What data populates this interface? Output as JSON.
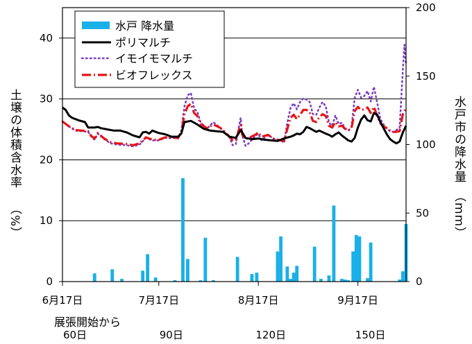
{
  "chart_data": {
    "type": "bar+line",
    "left_axis": {
      "label": "土壌の体積含水率",
      "unit": "%",
      "ylim": [
        0,
        45
      ],
      "ticks": [
        0,
        10,
        20,
        30,
        40
      ]
    },
    "right_axis": {
      "label": "水戸市の降水量",
      "unit": "mm",
      "ylim": [
        0,
        200
      ],
      "ticks": [
        0,
        50,
        100,
        150,
        200
      ]
    },
    "x_axis": {
      "start": "6月17日",
      "end_day": 107,
      "ticks": [
        {
          "day": 0,
          "label": "6月17日"
        },
        {
          "day": 30,
          "label": "7月17日"
        },
        {
          "day": 61,
          "label": "8月17日"
        },
        {
          "day": 92,
          "label": "9月17日"
        }
      ],
      "secondary_label": "展張開始から",
      "secondary_ticks": [
        {
          "day": 0,
          "label": "60日"
        },
        {
          "day": 30,
          "label": "90日"
        },
        {
          "day": 61,
          "label": "120日"
        },
        {
          "day": 92,
          "label": "150日"
        }
      ]
    },
    "grid": "horizontal",
    "legend_position": "top-left",
    "series": [
      {
        "name": "水戸 降水量",
        "kind": "bar",
        "axis": "right",
        "color": "#1ab0e8",
        "points": [
          [
            10,
            6
          ],
          [
            15.5,
            9
          ],
          [
            18.5,
            2
          ],
          [
            25,
            8
          ],
          [
            26.5,
            20
          ],
          [
            29,
            3
          ],
          [
            35,
            1
          ],
          [
            37.5,
            75.5
          ],
          [
            39,
            16.5
          ],
          [
            43,
            1
          ],
          [
            44.5,
            32
          ],
          [
            47,
            1
          ],
          [
            54.5,
            18
          ],
          [
            59,
            5.5
          ],
          [
            60.5,
            6.5
          ],
          [
            67,
            22
          ],
          [
            68,
            33
          ],
          [
            70,
            11
          ],
          [
            71,
            2
          ],
          [
            72,
            6.5
          ],
          [
            73,
            11.5
          ],
          [
            78.5,
            25.5
          ],
          [
            80.5,
            2
          ],
          [
            83,
            4.5
          ],
          [
            84.5,
            55.5
          ],
          [
            87,
            2
          ],
          [
            88,
            1.5
          ],
          [
            89,
            1
          ],
          [
            90.5,
            22
          ],
          [
            91.5,
            34
          ],
          [
            92.5,
            33
          ],
          [
            95,
            2.5
          ],
          [
            96,
            28.5
          ],
          [
            105,
            1.5
          ],
          [
            106,
            7.5
          ],
          [
            107,
            42
          ]
        ]
      },
      {
        "name": "ポリマルチ",
        "kind": "line",
        "axis": "left",
        "color": "#000000",
        "points": [
          [
            0,
            28.6
          ],
          [
            1,
            28.2
          ],
          [
            2,
            27.3
          ],
          [
            3,
            26.9
          ],
          [
            5,
            26.5
          ],
          [
            7,
            26.2
          ],
          [
            8,
            25.3
          ],
          [
            10,
            25.3
          ],
          [
            11,
            25.4
          ],
          [
            12,
            25.2
          ],
          [
            14,
            25
          ],
          [
            16,
            24.8
          ],
          [
            18,
            24.8
          ],
          [
            20,
            24.5
          ],
          [
            22,
            24
          ],
          [
            24,
            23.7
          ],
          [
            25,
            24.5
          ],
          [
            26,
            24.6
          ],
          [
            27,
            24.3
          ],
          [
            28,
            24.8
          ],
          [
            30,
            24.4
          ],
          [
            32,
            24.2
          ],
          [
            34,
            23.8
          ],
          [
            36,
            23.8
          ],
          [
            37,
            24.3
          ],
          [
            38,
            26.2
          ],
          [
            40,
            26.4
          ],
          [
            42,
            25.8
          ],
          [
            44,
            25.1
          ],
          [
            46,
            24.8
          ],
          [
            48,
            24.7
          ],
          [
            50,
            24.6
          ],
          [
            52,
            23.8
          ],
          [
            54,
            23.6
          ],
          [
            55.5,
            24.9
          ],
          [
            57,
            23.6
          ],
          [
            59,
            23.4
          ],
          [
            61,
            23.5
          ],
          [
            63,
            23.3
          ],
          [
            65,
            23.2
          ],
          [
            67,
            23.1
          ],
          [
            69,
            23.5
          ],
          [
            71,
            23.8
          ],
          [
            72,
            24
          ],
          [
            73,
            24.3
          ],
          [
            74,
            24.2
          ],
          [
            75,
            24.6
          ],
          [
            76,
            25.4
          ],
          [
            77,
            25.2
          ],
          [
            79,
            24.6
          ],
          [
            80,
            24.8
          ],
          [
            82,
            24.3
          ],
          [
            83,
            24.1
          ],
          [
            84,
            23.8
          ],
          [
            85,
            24.2
          ],
          [
            86,
            24.5
          ],
          [
            87,
            24
          ],
          [
            88,
            23.6
          ],
          [
            89,
            23.2
          ],
          [
            90,
            23
          ],
          [
            91,
            23.6
          ],
          [
            92,
            25.3
          ],
          [
            93,
            26.6
          ],
          [
            94,
            27.3
          ],
          [
            95,
            26.5
          ],
          [
            96,
            26.3
          ],
          [
            97,
            27.7
          ],
          [
            98,
            27.4
          ],
          [
            99,
            26.2
          ],
          [
            100,
            25.2
          ],
          [
            101,
            24.2
          ],
          [
            102,
            23.4
          ],
          [
            103,
            23
          ],
          [
            104,
            22.7
          ],
          [
            105,
            23
          ],
          [
            106,
            24.5
          ],
          [
            107,
            25.6
          ]
        ]
      },
      {
        "name": "イモイモマルチ",
        "kind": "line",
        "axis": "left",
        "color": "#7a3cc8",
        "points": [
          [
            0,
            26.3
          ],
          [
            2,
            25.5
          ],
          [
            4,
            24.8
          ],
          [
            6,
            24.7
          ],
          [
            8,
            24.6
          ],
          [
            9,
            23.8
          ],
          [
            10,
            23.3
          ],
          [
            11,
            24.3
          ],
          [
            13,
            23.4
          ],
          [
            15,
            22.7
          ],
          [
            17,
            22.5
          ],
          [
            20,
            22.4
          ],
          [
            22,
            22.2
          ],
          [
            24,
            22.5
          ],
          [
            26,
            23.6
          ],
          [
            28,
            23.2
          ],
          [
            30,
            23.2
          ],
          [
            32,
            23.6
          ],
          [
            34,
            23.6
          ],
          [
            36,
            23.5
          ],
          [
            37,
            24.8
          ],
          [
            38,
            28.8
          ],
          [
            39,
            30.6
          ],
          [
            40,
            31
          ],
          [
            41,
            28.4
          ],
          [
            42,
            27.9
          ],
          [
            43,
            26.2
          ],
          [
            45,
            25.1
          ],
          [
            47,
            26.2
          ],
          [
            49,
            25.3
          ],
          [
            51,
            24.3
          ],
          [
            52,
            23.7
          ],
          [
            53,
            22.4
          ],
          [
            54,
            22.6
          ],
          [
            55,
            25.6
          ],
          [
            55.5,
            26.9
          ],
          [
            56,
            24
          ],
          [
            57,
            22.3
          ],
          [
            58,
            22.7
          ],
          [
            60,
            23.9
          ],
          [
            61,
            24.3
          ],
          [
            62,
            23.2
          ],
          [
            64,
            24.1
          ],
          [
            66,
            23.4
          ],
          [
            68,
            23.2
          ],
          [
            69,
            22.8
          ],
          [
            70,
            26
          ],
          [
            71,
            28.5
          ],
          [
            72,
            29.3
          ],
          [
            73,
            28.3
          ],
          [
            74,
            29.5
          ],
          [
            75,
            30.1
          ],
          [
            76,
            29.9
          ],
          [
            77,
            29.5
          ],
          [
            78,
            27.5
          ],
          [
            79,
            27.4
          ],
          [
            80,
            28.6
          ],
          [
            81,
            29.5
          ],
          [
            82,
            28.8
          ],
          [
            83,
            26.1
          ],
          [
            84,
            25.6
          ],
          [
            85,
            27.3
          ],
          [
            86,
            25.9
          ],
          [
            87,
            26.1
          ],
          [
            88,
            25.2
          ],
          [
            89,
            24.8
          ],
          [
            90,
            25.4
          ],
          [
            91,
            30.2
          ],
          [
            92,
            31.5
          ],
          [
            93,
            30.2
          ],
          [
            94,
            30.5
          ],
          [
            95,
            31.3
          ],
          [
            96,
            29.6
          ],
          [
            97,
            32
          ],
          [
            98,
            29.4
          ],
          [
            99,
            26.7
          ],
          [
            100,
            25.8
          ],
          [
            101,
            25.2
          ],
          [
            102,
            24.7
          ],
          [
            103,
            24.6
          ],
          [
            104,
            24.9
          ],
          [
            105,
            25.2
          ],
          [
            106,
            34.8
          ],
          [
            106.5,
            38.9
          ],
          [
            107,
            35.5
          ]
        ]
      },
      {
        "name": "ビオフレックス",
        "kind": "line",
        "axis": "left",
        "color": "#e81414",
        "points": [
          [
            0,
            26.3
          ],
          [
            2,
            25.5
          ],
          [
            4,
            24.9
          ],
          [
            6,
            24.8
          ],
          [
            8,
            24.7
          ],
          [
            9,
            23.9
          ],
          [
            10,
            23.5
          ],
          [
            11,
            24.4
          ],
          [
            13,
            23.5
          ],
          [
            15,
            22.9
          ],
          [
            17,
            22.7
          ],
          [
            20,
            22.6
          ],
          [
            22,
            22.4
          ],
          [
            24,
            22.7
          ],
          [
            26,
            23.7
          ],
          [
            28,
            23.3
          ],
          [
            30,
            23.3
          ],
          [
            32,
            23.7
          ],
          [
            34,
            23.6
          ],
          [
            36,
            23.6
          ],
          [
            37,
            24.5
          ],
          [
            38,
            27.5
          ],
          [
            39,
            28.8
          ],
          [
            40,
            29.2
          ],
          [
            41,
            27.7
          ],
          [
            42,
            27.2
          ],
          [
            43,
            25.9
          ],
          [
            45,
            25.2
          ],
          [
            47,
            25.8
          ],
          [
            49,
            25.3
          ],
          [
            51,
            24.4
          ],
          [
            52,
            23.8
          ],
          [
            53,
            23.2
          ],
          [
            54,
            23.2
          ],
          [
            55,
            25
          ],
          [
            55.5,
            25.7
          ],
          [
            56,
            24.1
          ],
          [
            57,
            23.4
          ],
          [
            58,
            23.6
          ],
          [
            60,
            24.1
          ],
          [
            61,
            24.5
          ],
          [
            62,
            23.8
          ],
          [
            64,
            24.1
          ],
          [
            66,
            23.4
          ],
          [
            68,
            23.2
          ],
          [
            69,
            23.1
          ],
          [
            70,
            25
          ],
          [
            71,
            26.9
          ],
          [
            72,
            27.4
          ],
          [
            73,
            26.7
          ],
          [
            74,
            27.4
          ],
          [
            75,
            28.2
          ],
          [
            76,
            28.2
          ],
          [
            77,
            27.8
          ],
          [
            78,
            26.4
          ],
          [
            79,
            26.2
          ],
          [
            80,
            27
          ],
          [
            81,
            27.5
          ],
          [
            82,
            27.2
          ],
          [
            83,
            25.6
          ],
          [
            84,
            25.3
          ],
          [
            85,
            26.2
          ],
          [
            86,
            25.5
          ],
          [
            87,
            25.6
          ],
          [
            88,
            25.1
          ],
          [
            89,
            24.8
          ],
          [
            90,
            25.2
          ],
          [
            91,
            28
          ],
          [
            92,
            28.7
          ],
          [
            93,
            28.2
          ],
          [
            94,
            28.3
          ],
          [
            95,
            28.6
          ],
          [
            96,
            27.7
          ],
          [
            97,
            28.7
          ],
          [
            98,
            27.2
          ],
          [
            99,
            26
          ],
          [
            100,
            25.5
          ],
          [
            101,
            25.2
          ],
          [
            102,
            24.8
          ],
          [
            103,
            24.6
          ],
          [
            104,
            24.6
          ],
          [
            105,
            24.7
          ],
          [
            106,
            27.5
          ],
          [
            107,
            28.5
          ]
        ]
      }
    ]
  }
}
